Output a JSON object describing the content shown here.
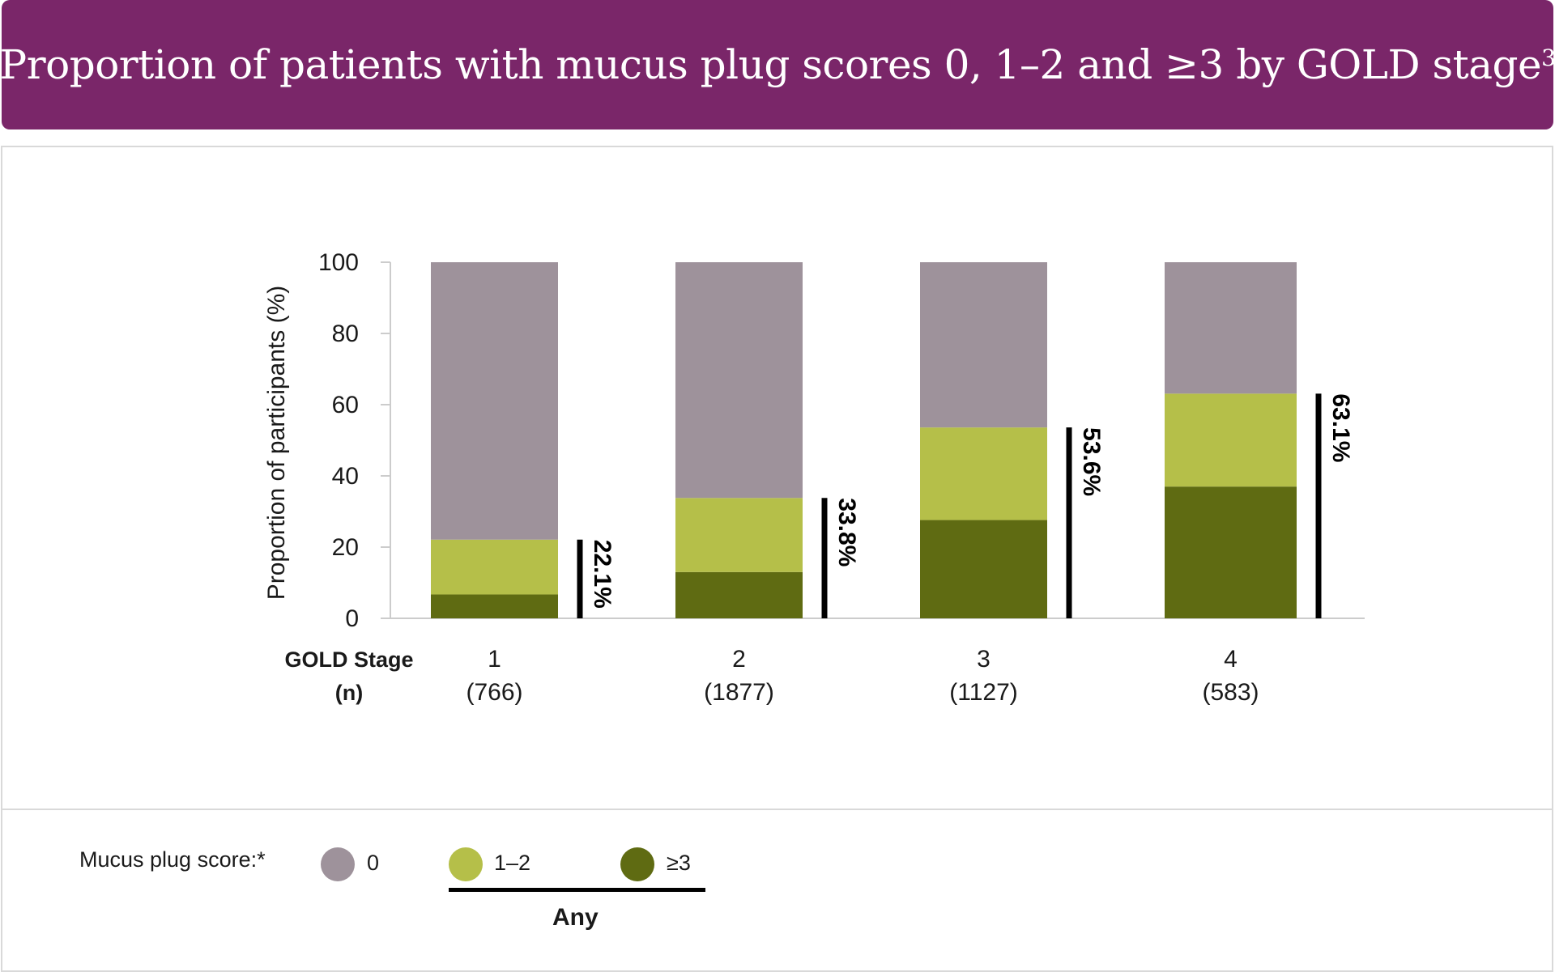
{
  "header": {
    "title": "Proportion of patients with mucus plug scores 0, 1–2 and ≥3 by GOLD stage",
    "superscript": "3"
  },
  "chart_data": {
    "type": "bar",
    "stacked": true,
    "ylabel": "Proportion of participants (%)",
    "ylim": [
      0,
      100
    ],
    "yticks": [
      "0",
      "20",
      "40",
      "60",
      "80",
      "100"
    ],
    "x_row_label": "GOLD Stage",
    "n_row_label": "(n)",
    "categories": [
      "1",
      "2",
      "3",
      "4"
    ],
    "n_values": [
      "(766)",
      "(1877)",
      "(1127)",
      "(583)"
    ],
    "series": [
      {
        "name": "≥3",
        "values": [
          6.7,
          13.0,
          27.6,
          37.0
        ],
        "color": "#5f6b12"
      },
      {
        "name": "1–2",
        "values": [
          15.4,
          20.8,
          26.0,
          26.1
        ],
        "color": "#b5bf49"
      },
      {
        "name": "0",
        "values": [
          77.9,
          66.2,
          46.4,
          36.9
        ],
        "color": "#9e929b"
      }
    ],
    "any_labels": [
      "22.1%",
      "33.8%",
      "53.6%",
      "63.1%"
    ],
    "any_values": [
      22.1,
      33.8,
      53.6,
      63.1
    ],
    "grid": false
  },
  "legend": {
    "title": "Mucus plug score:*",
    "items": [
      {
        "label": "0",
        "color": "#9e929b"
      },
      {
        "label": "1–2",
        "color": "#b5bf49"
      },
      {
        "label": "≥3",
        "color": "#5f6b12"
      }
    ],
    "group_label": "Any"
  }
}
